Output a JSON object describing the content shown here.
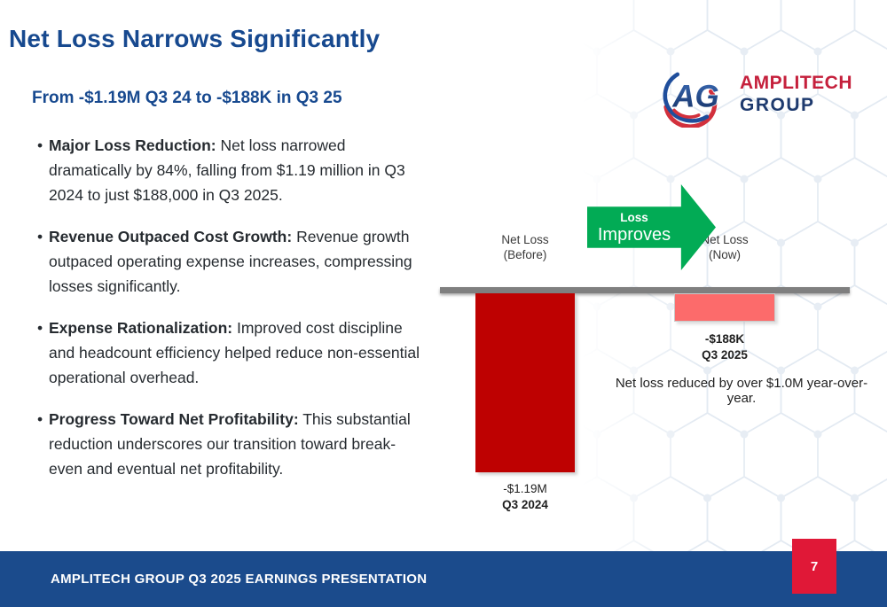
{
  "slide": {
    "title": "Net Loss Narrows Significantly",
    "subtitle": "From -$1.19M Q3 24 to -$188K in Q3 25",
    "bullets": [
      {
        "lead": "Major Loss Reduction:",
        "text": " Net loss narrowed dramatically by 84%, falling from $1.19 million in Q3 2024 to just $188,000 in Q3 2025."
      },
      {
        "lead": "Revenue Outpaced Cost Growth:",
        "text": " Revenue growth outpaced operating expense increases, compressing losses significantly."
      },
      {
        "lead": "Expense Rationalization:",
        "text": " Improved cost discipline and headcount efficiency helped reduce non-essential operational overhead."
      },
      {
        "lead": "Progress Toward Net Profitability:",
        "text": " This substantial reduction underscores our transition toward break-even and eventual net profitability."
      }
    ]
  },
  "logo": {
    "monogram": "AG",
    "name_line1": "AMPLITECH",
    "name_line2": "GROUP"
  },
  "chart_data": {
    "type": "bar",
    "title": "",
    "categories": [
      "Q3 2024",
      "Q3 2025"
    ],
    "values": [
      -1190000,
      -188000
    ],
    "value_labels": [
      "-$1.19M",
      "-$188K"
    ],
    "column_headers": [
      "Net Loss (Before)",
      "Net Loss (Now)"
    ],
    "header_line1": [
      "Net Loss",
      "Net Loss"
    ],
    "header_line2": [
      "(Before)",
      "(Now)"
    ],
    "arrow": {
      "line1": "Loss",
      "line2": "Improves"
    },
    "note": "Net loss reduced by over $1.0M year-over-year.",
    "ylim": [
      -1250000,
      0
    ],
    "baseline_value": 0,
    "grid": false,
    "legend": "none",
    "colors": {
      "bar_before": "#be0101",
      "bar_now": "#fc6b6b",
      "arrow_green": "#02ab55",
      "baseline_gray": "#7f7f7f"
    }
  },
  "footer": {
    "text": "AMPLITECH GROUP Q3 2025 EARNINGS PRESENTATION",
    "page_number": "7",
    "bar_color": "#1b4b8c",
    "page_box_color": "#e01837"
  },
  "theme": {
    "title_blue": "#17498f",
    "body_text": "#262b30",
    "logo_red": "#c5203c",
    "logo_navy": "#1e3a6e",
    "hex_outline": "#e3eaf2"
  }
}
